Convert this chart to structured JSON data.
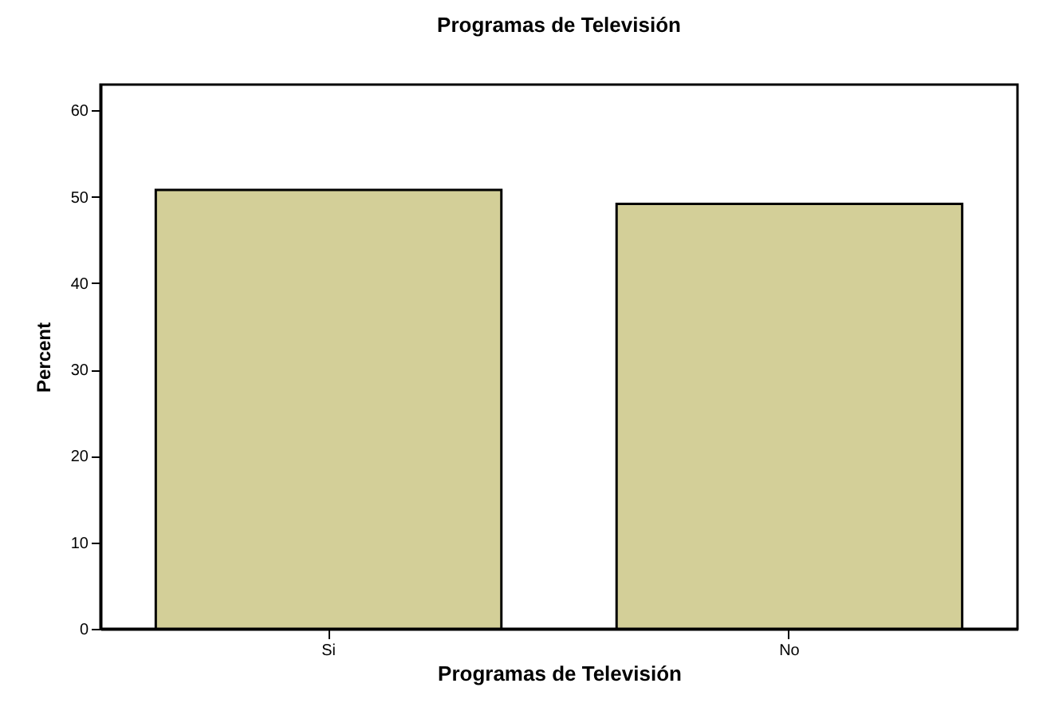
{
  "chart_data": {
    "type": "bar",
    "title": "Programas de Televisión",
    "xlabel": "Programas de Televisión",
    "ylabel": "Percent",
    "categories": [
      "Si",
      "No"
    ],
    "values": [
      50.8,
      49.2
    ],
    "color": "#d3cf98",
    "ylim": [
      0,
      63
    ],
    "yticks": [
      0,
      10,
      20,
      30,
      40,
      50,
      60
    ],
    "grid": false
  }
}
